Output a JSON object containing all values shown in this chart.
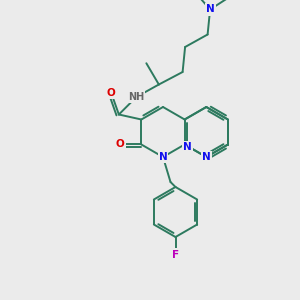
{
  "bg": "#ebebeb",
  "bond": "#2d7a5f",
  "N": "#1010ee",
  "O": "#dd0000",
  "F": "#bb00bb",
  "NH": "#666666",
  "lw": 1.4,
  "fs": 7.5
}
